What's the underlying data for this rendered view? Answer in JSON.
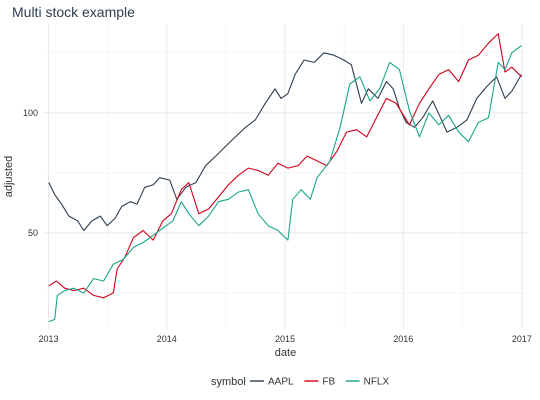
{
  "chart_data": {
    "type": "line",
    "title": "Multi stock example",
    "xlabel": "date",
    "ylabel": "adjusted",
    "x_ticks": [
      "2013",
      "2014",
      "2015",
      "2016",
      "2017"
    ],
    "y_ticks": [
      50,
      100
    ],
    "xlim": [
      "2012-12-15",
      "2017-01-20"
    ],
    "ylim": [
      10,
      137
    ],
    "grid": true,
    "legend": {
      "title": "symbol",
      "position": "bottom"
    },
    "series": [
      {
        "name": "AAPL",
        "color": "#2c3e50",
        "points": [
          [
            "2013-01-02",
            71
          ],
          [
            "2013-01-20",
            66
          ],
          [
            "2013-02-10",
            62
          ],
          [
            "2013-03-05",
            57
          ],
          [
            "2013-04-01",
            55
          ],
          [
            "2013-04-20",
            51
          ],
          [
            "2013-05-15",
            55
          ],
          [
            "2013-06-10",
            57
          ],
          [
            "2013-07-01",
            53
          ],
          [
            "2013-07-25",
            56
          ],
          [
            "2013-08-15",
            61
          ],
          [
            "2013-09-10",
            63
          ],
          [
            "2013-10-01",
            62
          ],
          [
            "2013-10-25",
            69
          ],
          [
            "2013-11-20",
            70
          ],
          [
            "2013-12-10",
            73
          ],
          [
            "2014-01-10",
            72
          ],
          [
            "2014-02-01",
            64
          ],
          [
            "2014-03-01",
            69
          ],
          [
            "2014-04-01",
            71
          ],
          [
            "2014-05-01",
            78
          ],
          [
            "2014-06-01",
            82
          ],
          [
            "2014-07-01",
            86
          ],
          [
            "2014-08-01",
            90
          ],
          [
            "2014-09-01",
            94
          ],
          [
            "2014-10-01",
            97
          ],
          [
            "2014-11-01",
            104
          ],
          [
            "2014-12-01",
            110
          ],
          [
            "2014-12-20",
            106
          ],
          [
            "2015-01-10",
            108
          ],
          [
            "2015-02-01",
            116
          ],
          [
            "2015-03-01",
            122
          ],
          [
            "2015-04-01",
            121
          ],
          [
            "2015-05-01",
            125
          ],
          [
            "2015-06-01",
            124
          ],
          [
            "2015-07-01",
            122
          ],
          [
            "2015-07-25",
            120
          ],
          [
            "2015-08-25",
            104
          ],
          [
            "2015-09-15",
            110
          ],
          [
            "2015-10-15",
            106
          ],
          [
            "2015-11-10",
            113
          ],
          [
            "2015-12-01",
            110
          ],
          [
            "2015-12-20",
            102
          ],
          [
            "2016-01-10",
            96
          ],
          [
            "2016-02-05",
            94
          ],
          [
            "2016-03-01",
            98
          ],
          [
            "2016-04-01",
            105
          ],
          [
            "2016-04-25",
            98
          ],
          [
            "2016-05-15",
            92
          ],
          [
            "2016-06-15",
            94
          ],
          [
            "2016-07-15",
            97
          ],
          [
            "2016-08-15",
            106
          ],
          [
            "2016-09-15",
            111
          ],
          [
            "2016-10-15",
            115
          ],
          [
            "2016-11-10",
            106
          ],
          [
            "2016-12-01",
            109
          ],
          [
            "2016-12-31",
            116
          ]
        ]
      },
      {
        "name": "FB",
        "color": "#d0021b",
        "points": [
          [
            "2013-01-02",
            28
          ],
          [
            "2013-01-25",
            30
          ],
          [
            "2013-02-20",
            27
          ],
          [
            "2013-03-20",
            26
          ],
          [
            "2013-04-20",
            27
          ],
          [
            "2013-05-20",
            24
          ],
          [
            "2013-06-20",
            23
          ],
          [
            "2013-07-20",
            25
          ],
          [
            "2013-08-01",
            35
          ],
          [
            "2013-08-25",
            40
          ],
          [
            "2013-09-20",
            48
          ],
          [
            "2013-10-20",
            51
          ],
          [
            "2013-11-20",
            47
          ],
          [
            "2013-12-20",
            55
          ],
          [
            "2014-01-15",
            58
          ],
          [
            "2014-02-15",
            68
          ],
          [
            "2014-03-10",
            71
          ],
          [
            "2014-04-10",
            58
          ],
          [
            "2014-05-10",
            60
          ],
          [
            "2014-06-10",
            65
          ],
          [
            "2014-07-10",
            70
          ],
          [
            "2014-08-10",
            74
          ],
          [
            "2014-09-10",
            77
          ],
          [
            "2014-10-10",
            76
          ],
          [
            "2014-11-10",
            74
          ],
          [
            "2014-12-10",
            79
          ],
          [
            "2015-01-10",
            77
          ],
          [
            "2015-02-10",
            78
          ],
          [
            "2015-03-10",
            82
          ],
          [
            "2015-04-10",
            80
          ],
          [
            "2015-05-10",
            78
          ],
          [
            "2015-06-10",
            84
          ],
          [
            "2015-07-10",
            92
          ],
          [
            "2015-08-10",
            93
          ],
          [
            "2015-09-10",
            90
          ],
          [
            "2015-10-10",
            98
          ],
          [
            "2015-11-10",
            106
          ],
          [
            "2015-12-10",
            104
          ],
          [
            "2016-01-20",
            95
          ],
          [
            "2016-02-20",
            104
          ],
          [
            "2016-03-20",
            110
          ],
          [
            "2016-04-20",
            116
          ],
          [
            "2016-05-20",
            118
          ],
          [
            "2016-06-20",
            113
          ],
          [
            "2016-07-20",
            122
          ],
          [
            "2016-08-20",
            124
          ],
          [
            "2016-09-20",
            129
          ],
          [
            "2016-10-20",
            133
          ],
          [
            "2016-11-10",
            117
          ],
          [
            "2016-12-01",
            119
          ],
          [
            "2016-12-31",
            115
          ]
        ]
      },
      {
        "name": "NFLX",
        "color": "#18a688",
        "points": [
          [
            "2013-01-02",
            13
          ],
          [
            "2013-01-20",
            14
          ],
          [
            "2013-01-28",
            24
          ],
          [
            "2013-02-20",
            26
          ],
          [
            "2013-03-20",
            27
          ],
          [
            "2013-04-20",
            25
          ],
          [
            "2013-05-20",
            31
          ],
          [
            "2013-06-20",
            30
          ],
          [
            "2013-07-20",
            37
          ],
          [
            "2013-08-20",
            39
          ],
          [
            "2013-09-20",
            44
          ],
          [
            "2013-10-20",
            46
          ],
          [
            "2013-11-20",
            49
          ],
          [
            "2013-12-20",
            52
          ],
          [
            "2014-01-20",
            55
          ],
          [
            "2014-02-15",
            63
          ],
          [
            "2014-03-10",
            58
          ],
          [
            "2014-04-10",
            53
          ],
          [
            "2014-05-10",
            57
          ],
          [
            "2014-06-10",
            63
          ],
          [
            "2014-07-10",
            64
          ],
          [
            "2014-08-10",
            67
          ],
          [
            "2014-09-10",
            68
          ],
          [
            "2014-10-10",
            58
          ],
          [
            "2014-11-10",
            53
          ],
          [
            "2014-12-10",
            51
          ],
          [
            "2015-01-10",
            47
          ],
          [
            "2015-01-25",
            64
          ],
          [
            "2015-02-20",
            68
          ],
          [
            "2015-03-20",
            64
          ],
          [
            "2015-04-10",
            73
          ],
          [
            "2015-05-20",
            80
          ],
          [
            "2015-06-20",
            94
          ],
          [
            "2015-07-20",
            112
          ],
          [
            "2015-08-20",
            115
          ],
          [
            "2015-09-20",
            105
          ],
          [
            "2015-10-20",
            110
          ],
          [
            "2015-11-20",
            121
          ],
          [
            "2015-12-20",
            118
          ],
          [
            "2016-01-20",
            101
          ],
          [
            "2016-02-20",
            90
          ],
          [
            "2016-03-20",
            100
          ],
          [
            "2016-04-20",
            95
          ],
          [
            "2016-05-20",
            99
          ],
          [
            "2016-06-20",
            92
          ],
          [
            "2016-07-20",
            88
          ],
          [
            "2016-08-20",
            96
          ],
          [
            "2016-09-20",
            98
          ],
          [
            "2016-10-20",
            121
          ],
          [
            "2016-11-10",
            118
          ],
          [
            "2016-12-01",
            125
          ],
          [
            "2016-12-31",
            128
          ]
        ]
      }
    ]
  }
}
